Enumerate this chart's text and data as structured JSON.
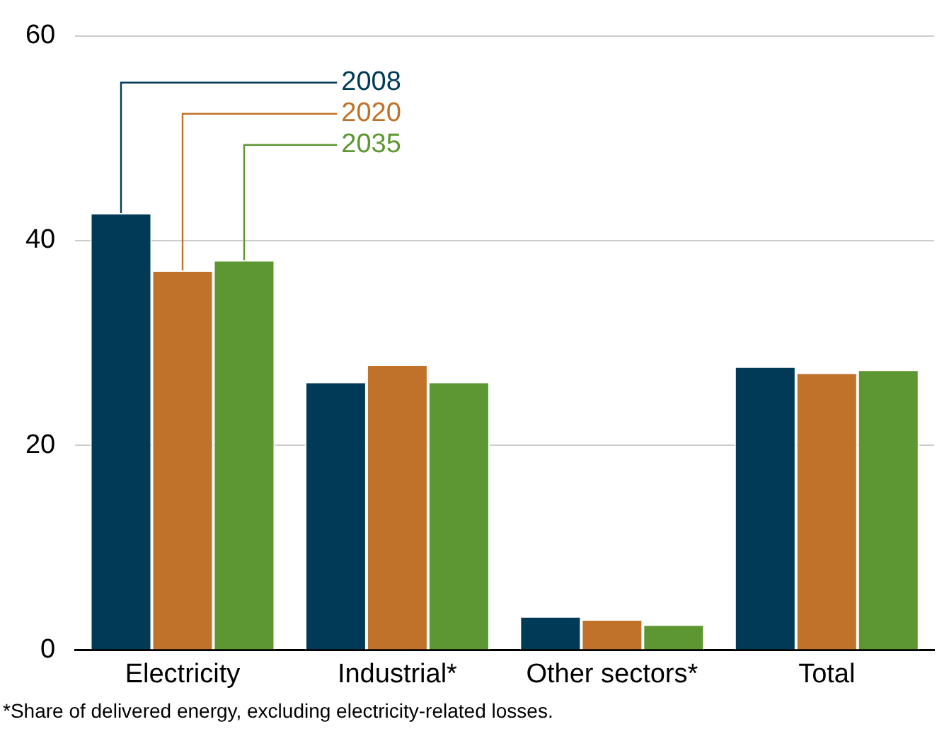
{
  "chart_data": {
    "type": "bar",
    "categories": [
      "Electricity",
      "Industrial*",
      "Other sectors*",
      "Total"
    ],
    "series": [
      {
        "name": "2008",
        "color": "#003a57",
        "values": [
          42.7,
          26.2,
          3.3,
          27.7
        ]
      },
      {
        "name": "2020",
        "color": "#c0722a",
        "values": [
          37.1,
          27.9,
          3.0,
          27.1
        ]
      },
      {
        "name": "2035",
        "color": "#5d9732",
        "values": [
          38.1,
          26.2,
          2.5,
          27.4
        ]
      }
    ],
    "ylim": [
      0,
      60
    ],
    "yticks": [
      0,
      20,
      40,
      60
    ],
    "grid": "y",
    "legend": "top left",
    "annotations": [
      "*Share of delivered energy, excluding electricity-related losses."
    ]
  }
}
